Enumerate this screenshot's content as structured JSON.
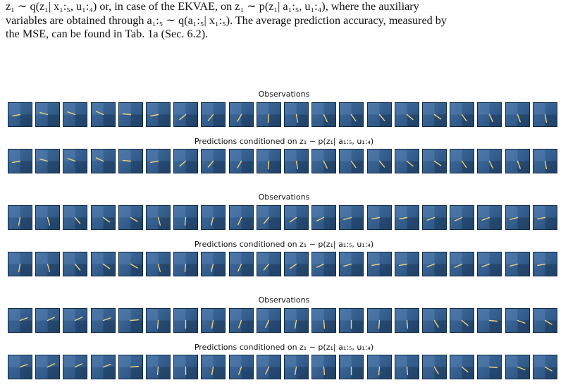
{
  "paragraph": {
    "line1": "z₁ ∼ q(z₁| x₁:₅, u₁:₄) or, in case of the EKVAE, on z₁ ∼ p(z₁| a₁:₅, u₁:₄), where the auxiliary",
    "line2": "variables are obtained through a₁:₅ ∼ q(a₁:₅| x₁:₅). The average prediction accuracy, measured by",
    "line3": "the MSE, can be found in Tab. 1a (Sec. 6.2)."
  },
  "figure": {
    "groups": [
      {
        "observations_caption": "Observations",
        "predictions_caption": "Predictions conditioned on z₁ ∼ p(z₁| a₁:₅, u₁:₄)",
        "pendulum_angles_deg": [
          -80,
          -105,
          -110,
          -115,
          -95,
          -80,
          -50,
          -40,
          -30,
          -5,
          10,
          25,
          35,
          40,
          50,
          55,
          35,
          25,
          20,
          10
        ]
      },
      {
        "observations_caption": "Observations",
        "predictions_caption": "Predictions conditioned on z₁ ∼ p(z₁| a₁:₅, u₁:₄)",
        "pendulum_angles_deg": [
          -10,
          15,
          40,
          55,
          60,
          15,
          -5,
          -15,
          -25,
          -40,
          -55,
          -65,
          -75,
          -80,
          -80,
          -70,
          -65,
          -70,
          -75,
          -80
        ]
      },
      {
        "observations_caption": "Observations",
        "predictions_caption": "Predictions conditioned on z₁ ∼ p(z₁| a₁:₅, u₁:₄)",
        "pendulum_angles_deg": [
          110,
          115,
          115,
          110,
          95,
          -5,
          0,
          -10,
          -20,
          -25,
          -10,
          5,
          0,
          -5,
          5,
          30,
          50,
          85,
          70,
          60
        ]
      }
    ]
  }
}
